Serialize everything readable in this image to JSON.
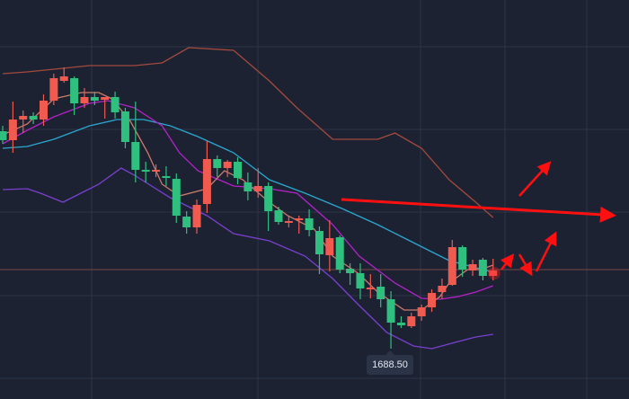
{
  "chart_data": {
    "type": "candlestick",
    "title": "",
    "xlabel": "",
    "ylabel": "",
    "ylim": [
      1632.5,
      2076.5
    ],
    "up_color": "#f05a4f",
    "down_color": "#2fbf7f",
    "low_label": "1688.50",
    "reference_price": 1776.5,
    "candles_ohlc": [
      [
        1930.5,
        1936.5,
        1916.5,
        1920.5
      ],
      [
        1920.5,
        1963.5,
        1906.5,
        1943.5
      ],
      [
        1943.5,
        1953.5,
        1928.5,
        1947.5
      ],
      [
        1947.5,
        1951.5,
        1938.5,
        1943.5
      ],
      [
        1943.5,
        1971.5,
        1936.5,
        1964.5
      ],
      [
        1964.5,
        1994.5,
        1959.5,
        1989.5
      ],
      [
        1986.5,
        2001.5,
        1984.5,
        1991.5
      ],
      [
        1989.5,
        1991.5,
        1948.5,
        1961.5
      ],
      [
        1961.5,
        1978.5,
        1956.5,
        1968.5
      ],
      [
        1968.5,
        1974.5,
        1959.5,
        1964.5
      ],
      [
        1965.5,
        1968.5,
        1944.5,
        1968.5
      ],
      [
        1968.5,
        1974.5,
        1944.5,
        1951.5
      ],
      [
        1952.5,
        1956.5,
        1911.5,
        1918.5
      ],
      [
        1918.5,
        1963.5,
        1873.5,
        1887.5
      ],
      [
        1887.5,
        1896.5,
        1873.5,
        1885.5
      ],
      [
        1886.5,
        1893.5,
        1879.5,
        1887.5
      ],
      [
        1880.5,
        1891.5,
        1869.5,
        1878.5
      ],
      [
        1877.5,
        1883.5,
        1828.5,
        1836.5
      ],
      [
        1835.5,
        1841.5,
        1816.5,
        1823.5
      ],
      [
        1823.5,
        1854.5,
        1816.5,
        1848.5
      ],
      [
        1849.5,
        1919.5,
        1839.5,
        1899.5
      ],
      [
        1899.5,
        1903.5,
        1879.5,
        1889.5
      ],
      [
        1889.5,
        1898.5,
        1879.5,
        1896.5
      ],
      [
        1896.5,
        1901.5,
        1871.5,
        1878.5
      ],
      [
        1873.5,
        1884.5,
        1853.5,
        1863.5
      ],
      [
        1863.5,
        1889.5,
        1856.5,
        1869.5
      ],
      [
        1869.5,
        1873.5,
        1819.5,
        1841.5
      ],
      [
        1842.5,
        1846.5,
        1826.5,
        1829.5
      ],
      [
        1829.5,
        1835.5,
        1823.5,
        1830.5
      ],
      [
        1831.5,
        1836.5,
        1816.5,
        1833.5
      ],
      [
        1833.5,
        1843.5,
        1813.5,
        1820.5
      ],
      [
        1819.5,
        1824.5,
        1771.5,
        1793.5
      ],
      [
        1792.5,
        1831.5,
        1774.5,
        1811.5
      ],
      [
        1812.5,
        1814.5,
        1772.5,
        1776.5
      ],
      [
        1777.5,
        1783.5,
        1759.5,
        1772.5
      ],
      [
        1772.5,
        1783.5,
        1743.5,
        1755.5
      ],
      [
        1754.5,
        1771.5,
        1744.5,
        1756.5
      ],
      [
        1757.5,
        1771.5,
        1734.5,
        1743.5
      ],
      [
        1743.5,
        1752.5,
        1688.5,
        1717.5
      ],
      [
        1717.5,
        1724.5,
        1711.5,
        1714.5
      ],
      [
        1713.5,
        1728.5,
        1711.5,
        1724.5
      ],
      [
        1724.5,
        1737.5,
        1719.5,
        1734.5
      ],
      [
        1734.5,
        1754.5,
        1729.5,
        1750.5
      ],
      [
        1751.5,
        1766.5,
        1743.5,
        1758.5
      ],
      [
        1759.5,
        1809.5,
        1758.5,
        1801.5
      ],
      [
        1801.5,
        1803.5,
        1768.5,
        1776.5
      ],
      [
        1775.5,
        1787.5,
        1769.5,
        1782.5
      ],
      [
        1787.5,
        1789.5,
        1764.5,
        1769.5
      ],
      [
        1769.5,
        1788.5,
        1764.5,
        1775.5
      ]
    ],
    "series": [
      {
        "name": "bollinger-upper",
        "color": "#a34a3d",
        "points": [
          [
            0,
            1994.5
          ],
          [
            2.4,
            1996.5
          ],
          [
            8.5,
            2003.5
          ],
          [
            12.9,
            2003.5
          ],
          [
            15.6,
            2006.5
          ],
          [
            18.2,
            2023.5
          ],
          [
            22.6,
            2020.5
          ],
          [
            26.1,
            1986.5
          ],
          [
            28.8,
            1956.5
          ],
          [
            32.3,
            1921.5
          ],
          [
            36.7,
            1921.5
          ],
          [
            38.4,
            1928.5
          ],
          [
            41,
            1911.5
          ],
          [
            43.7,
            1876.5
          ],
          [
            46.3,
            1851.5
          ],
          [
            48,
            1834.5
          ]
        ]
      },
      {
        "name": "bollinger-middle",
        "color": "#2ba8d0",
        "points": [
          [
            0,
            1911.5
          ],
          [
            2.4,
            1913.5
          ],
          [
            5,
            1921.5
          ],
          [
            8.5,
            1936.5
          ],
          [
            11.2,
            1943.5
          ],
          [
            13.8,
            1943.5
          ],
          [
            16.4,
            1936.5
          ],
          [
            19.1,
            1924.5
          ],
          [
            22.6,
            1906.5
          ],
          [
            26.1,
            1876.5
          ],
          [
            29.6,
            1861.5
          ],
          [
            33.2,
            1844.5
          ],
          [
            36.7,
            1826.5
          ],
          [
            40.2,
            1806.5
          ],
          [
            43.7,
            1786.5
          ],
          [
            48,
            1773.5
          ]
        ]
      },
      {
        "name": "bollinger-lower",
        "color": "#7a40d0",
        "points": [
          [
            0,
            1865.5
          ],
          [
            2.4,
            1866.5
          ],
          [
            3.7,
            1861.5
          ],
          [
            5.9,
            1851.5
          ],
          [
            9.4,
            1871.5
          ],
          [
            11.6,
            1889.5
          ],
          [
            12.9,
            1881.5
          ],
          [
            16.4,
            1856.5
          ],
          [
            20,
            1836.5
          ],
          [
            22.6,
            1816.5
          ],
          [
            26.1,
            1808.5
          ],
          [
            29.6,
            1791.5
          ],
          [
            32.3,
            1766.5
          ],
          [
            34.9,
            1736.5
          ],
          [
            37.6,
            1706.5
          ],
          [
            40.2,
            1691.5
          ],
          [
            42,
            1688.5
          ],
          [
            44.6,
            1696.5
          ],
          [
            46.3,
            1701.5
          ],
          [
            48,
            1704.5
          ]
        ]
      },
      {
        "name": "ma10",
        "color": "#b422c8",
        "points": [
          [
            0,
            1916.5
          ],
          [
            2.4,
            1931.5
          ],
          [
            5,
            1946.5
          ],
          [
            8.5,
            1961.5
          ],
          [
            10.3,
            1964.5
          ],
          [
            12.9,
            1956.5
          ],
          [
            15.6,
            1936.5
          ],
          [
            17.3,
            1906.5
          ],
          [
            19.1,
            1886.5
          ],
          [
            22.6,
            1869.5
          ],
          [
            26.1,
            1866.5
          ],
          [
            28.8,
            1861.5
          ],
          [
            32.3,
            1826.5
          ],
          [
            34.9,
            1791.5
          ],
          [
            38.4,
            1761.5
          ],
          [
            41,
            1744.5
          ],
          [
            42.8,
            1743.5
          ],
          [
            44.6,
            1746.5
          ],
          [
            46.3,
            1751.5
          ],
          [
            48,
            1758.5
          ]
        ]
      },
      {
        "name": "ma5",
        "color": "#cc7c6c",
        "points": [
          [
            0,
            1926.5
          ],
          [
            2.4,
            1938.5
          ],
          [
            5,
            1966.5
          ],
          [
            7.7,
            1973.5
          ],
          [
            9.4,
            1973.5
          ],
          [
            10.7,
            1966.5
          ],
          [
            12.5,
            1941.5
          ],
          [
            14.2,
            1906.5
          ],
          [
            15.6,
            1871.5
          ],
          [
            17.3,
            1858.5
          ],
          [
            20,
            1866.5
          ],
          [
            21.7,
            1886.5
          ],
          [
            23.5,
            1876.5
          ],
          [
            26.1,
            1851.5
          ],
          [
            27.9,
            1836.5
          ],
          [
            30.5,
            1821.5
          ],
          [
            32.3,
            1791.5
          ],
          [
            34.9,
            1771.5
          ],
          [
            36.7,
            1751.5
          ],
          [
            39.3,
            1731.5
          ],
          [
            41,
            1731.5
          ],
          [
            42.8,
            1746.5
          ],
          [
            43.7,
            1761.5
          ],
          [
            45.5,
            1776.5
          ],
          [
            46.8,
            1776.5
          ],
          [
            48,
            1781.5
          ]
        ]
      }
    ]
  }
}
